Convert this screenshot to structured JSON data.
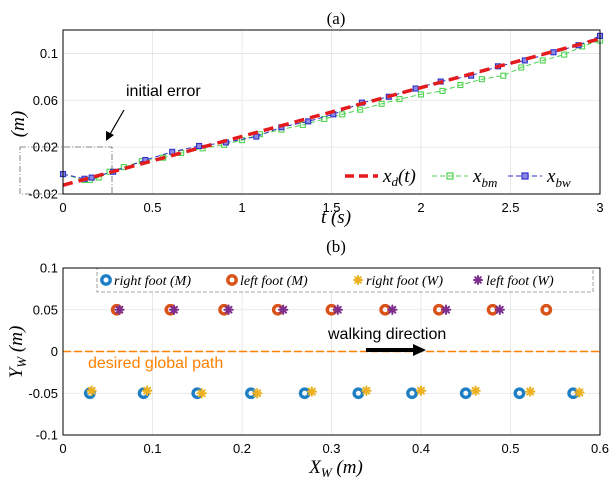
{
  "chart_data": [
    {
      "type": "line",
      "title": "(a)",
      "xlabel": "t (s)",
      "ylabel": "(m)",
      "xlim": [
        0,
        3
      ],
      "ylim": [
        -0.02,
        0.12
      ],
      "xticks": [
        "0",
        "0.5",
        "1",
        "1.5",
        "2",
        "2.5",
        "3"
      ],
      "yticks": [
        "-0.02",
        "0.02",
        "0.06",
        "0.1"
      ],
      "grid": true,
      "legend": "bottom-right",
      "annotation": "initial error",
      "series": [
        {
          "name": "x_d(t)",
          "color": "#e41a1c",
          "style": "dashed-thick",
          "x": [
            0,
            3
          ],
          "y": [
            -0.0125,
            0.1125
          ]
        },
        {
          "name": "x_bm",
          "color": "#4dd34d",
          "style": "dash-square-marker",
          "x": [
            0.0,
            0.12,
            0.15,
            0.2,
            0.26,
            0.34,
            0.44,
            0.56,
            0.66,
            0.78,
            0.9,
            1.0,
            1.1,
            1.22,
            1.34,
            1.46,
            1.56,
            1.66,
            1.78,
            1.88,
            2.0,
            2.12,
            2.22,
            2.34,
            2.46,
            2.56,
            2.68,
            2.8,
            2.9,
            3.0
          ],
          "y": [
            -0.003,
            -0.008,
            -0.008,
            -0.006,
            -0.001,
            0.003,
            0.008,
            0.011,
            0.015,
            0.019,
            0.022,
            0.026,
            0.031,
            0.035,
            0.039,
            0.044,
            0.048,
            0.052,
            0.057,
            0.061,
            0.065,
            0.068,
            0.073,
            0.078,
            0.081,
            0.088,
            0.094,
            0.099,
            0.106,
            0.111
          ]
        },
        {
          "name": "x_bw",
          "color": "#3030c8",
          "style": "dash-square-marker",
          "x": [
            0.0,
            0.12,
            0.16,
            0.28,
            0.46,
            0.61,
            0.76,
            0.91,
            1.08,
            1.22,
            1.37,
            1.51,
            1.67,
            1.82,
            1.97,
            2.11,
            2.28,
            2.43,
            2.58,
            2.74,
            2.88,
            3.0
          ],
          "y": [
            -0.003,
            -0.007,
            -0.006,
            -0.001,
            0.009,
            0.016,
            0.021,
            0.024,
            0.029,
            0.037,
            0.042,
            0.048,
            0.058,
            0.063,
            0.07,
            0.076,
            0.081,
            0.089,
            0.094,
            0.101,
            0.107,
            0.115
          ]
        }
      ]
    },
    {
      "type": "scatter",
      "title": "(b)",
      "xlabel": "X_W (m)",
      "ylabel": "Y_W (m)",
      "xlim": [
        0,
        0.6
      ],
      "ylim": [
        -0.1,
        0.1
      ],
      "xticks": [
        "0",
        "0.1",
        "0.2",
        "0.3",
        "0.4",
        "0.5",
        "0.6"
      ],
      "yticks": [
        "-0.1",
        "-0.05",
        "0",
        "0.05",
        "0.1"
      ],
      "grid": true,
      "legend": "top",
      "annotations": [
        "walking direction",
        "desired global path"
      ],
      "path": {
        "color": "#ff8000",
        "y": 0
      },
      "series": [
        {
          "name": "right foot (M)",
          "color": "#1f7fc4",
          "marker": "ring",
          "x": [
            0.03,
            0.09,
            0.15,
            0.21,
            0.27,
            0.33,
            0.39,
            0.45,
            0.51,
            0.57
          ],
          "y": [
            -0.05,
            -0.05,
            -0.05,
            -0.05,
            -0.05,
            -0.05,
            -0.05,
            -0.05,
            -0.05,
            -0.05
          ]
        },
        {
          "name": "left foot (M)",
          "color": "#d95319",
          "marker": "ring",
          "x": [
            0.06,
            0.12,
            0.18,
            0.24,
            0.3,
            0.36,
            0.42,
            0.48,
            0.54
          ],
          "y": [
            0.05,
            0.05,
            0.05,
            0.05,
            0.05,
            0.05,
            0.05,
            0.05,
            0.05
          ]
        },
        {
          "name": "right foot (W)",
          "color": "#edb120",
          "marker": "star",
          "x": [
            0.032,
            0.094,
            0.155,
            0.217,
            0.278,
            0.339,
            0.4,
            0.461,
            0.522,
            0.577
          ],
          "y": [
            -0.047,
            -0.047,
            -0.05,
            -0.05,
            -0.048,
            -0.047,
            -0.047,
            -0.047,
            -0.048,
            -0.049
          ]
        },
        {
          "name": "left foot (W)",
          "color": "#7e2f8e",
          "marker": "star",
          "x": [
            0.063,
            0.124,
            0.185,
            0.246,
            0.307,
            0.368,
            0.428,
            0.488
          ],
          "y": [
            0.05,
            0.05,
            0.05,
            0.05,
            0.05,
            0.05,
            0.05,
            0.05
          ]
        }
      ]
    }
  ]
}
